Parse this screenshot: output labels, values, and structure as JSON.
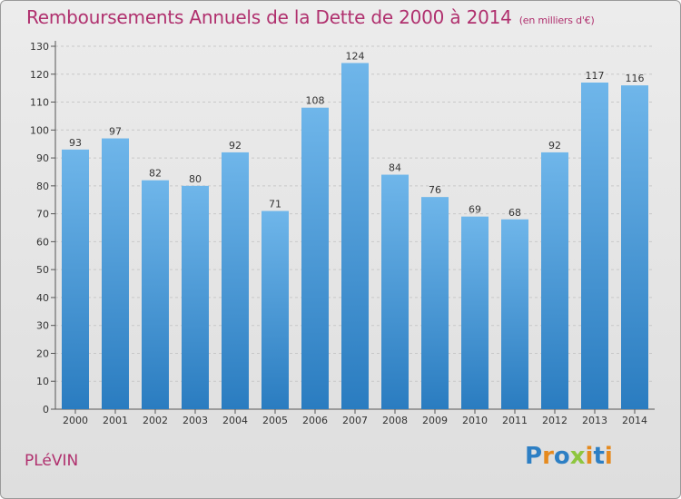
{
  "title": "Remboursements Annuels de la Dette de 2000 à 2014",
  "unit_note": "(en milliers d'€)",
  "commune": "PLéVIN",
  "logo": {
    "text": "Proxiti",
    "letters": [
      {
        "ch": "P",
        "color": "#2d7fc4"
      },
      {
        "ch": "r",
        "color": "#e58a1f"
      },
      {
        "ch": "o",
        "color": "#2d7fc4"
      },
      {
        "ch": "x",
        "color": "#8ec63f"
      },
      {
        "ch": "i",
        "color": "#e58a1f"
      },
      {
        "ch": "t",
        "color": "#2d7fc4"
      },
      {
        "ch": "i",
        "color": "#e58a1f"
      }
    ]
  },
  "colors": {
    "bar_top": "#6fb6ea",
    "bar_bottom": "#2a7cc0",
    "title": "#b0306e"
  },
  "chart_data": {
    "type": "bar",
    "categories": [
      "2000",
      "2001",
      "2002",
      "2003",
      "2004",
      "2005",
      "2006",
      "2007",
      "2008",
      "2009",
      "2010",
      "2011",
      "2012",
      "2013",
      "2014"
    ],
    "values": [
      93,
      97,
      82,
      80,
      92,
      71,
      108,
      124,
      84,
      76,
      69,
      68,
      92,
      117,
      116
    ],
    "yticks": [
      0,
      10,
      20,
      30,
      40,
      50,
      60,
      70,
      80,
      90,
      100,
      110,
      120,
      130
    ],
    "ylim": [
      0,
      130
    ],
    "grid": true
  }
}
